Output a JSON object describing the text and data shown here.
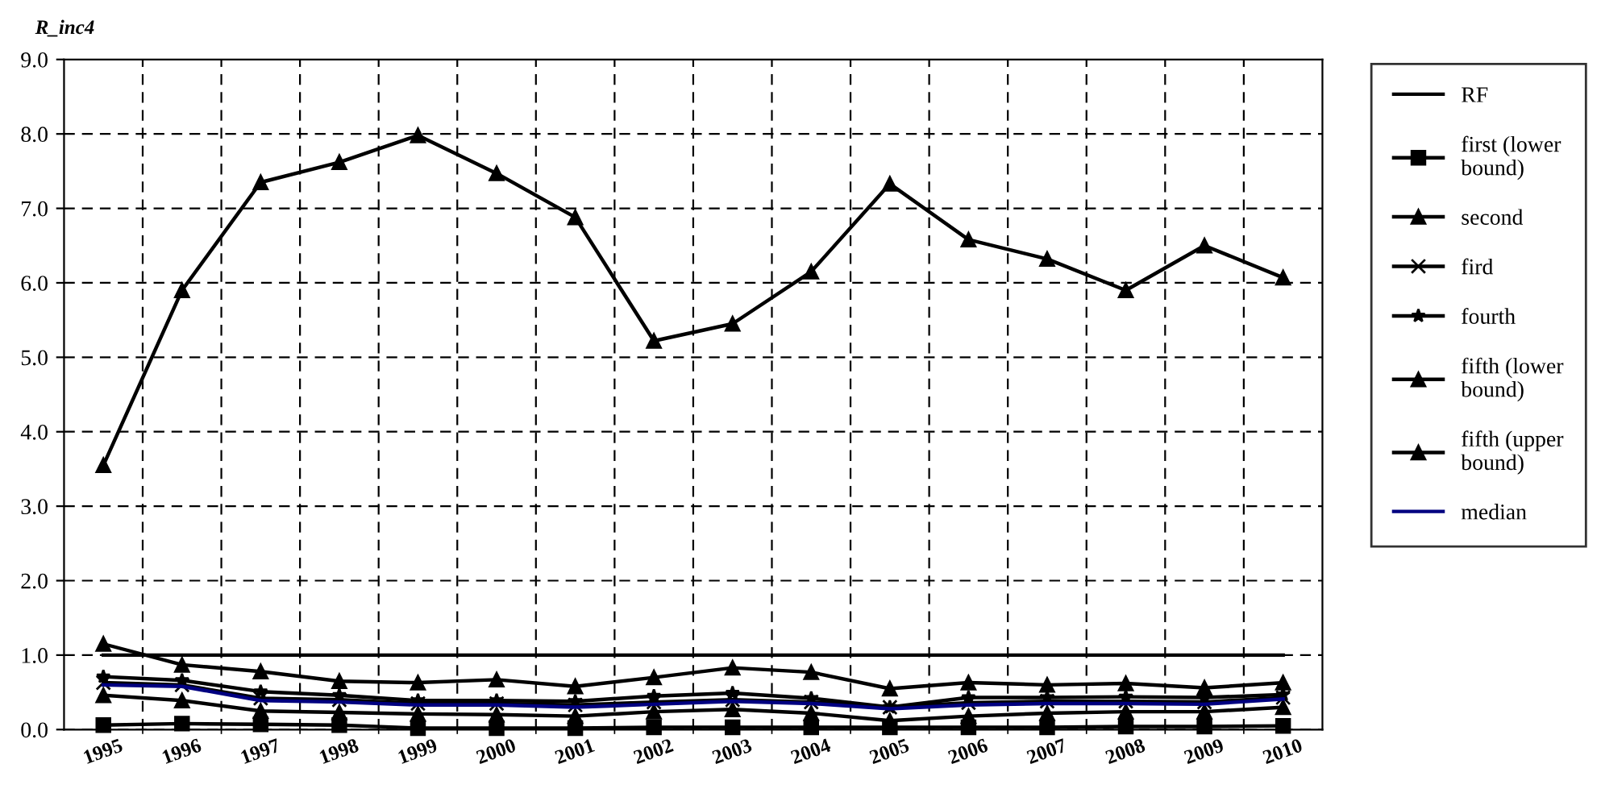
{
  "chart_data": {
    "type": "line",
    "title": "R_inc4",
    "categories": [
      "1995",
      "1996",
      "1997",
      "1998",
      "1999",
      "2000",
      "2001",
      "2002",
      "2003",
      "2004",
      "2005",
      "2006",
      "2007",
      "2008",
      "2009",
      "2010"
    ],
    "series": [
      {
        "name": "RF",
        "color": "#000000",
        "marker": "none",
        "values": [
          1.0,
          1.0,
          1.0,
          1.0,
          1.0,
          1.0,
          1.0,
          1.0,
          1.0,
          1.0,
          1.0,
          1.0,
          1.0,
          1.0,
          1.0,
          1.0
        ]
      },
      {
        "name": "first (lower bound)",
        "color": "#000000",
        "marker": "square",
        "values": [
          0.06,
          0.08,
          0.07,
          0.06,
          0.02,
          0.02,
          0.02,
          0.03,
          0.03,
          0.03,
          0.03,
          0.03,
          0.03,
          0.04,
          0.04,
          0.05
        ]
      },
      {
        "name": "second",
        "color": "#000000",
        "marker": "triangle",
        "values": [
          0.46,
          0.39,
          0.25,
          0.23,
          0.21,
          0.2,
          0.18,
          0.24,
          0.27,
          0.22,
          0.12,
          0.18,
          0.22,
          0.24,
          0.24,
          0.3
        ]
      },
      {
        "name": "fird",
        "color": "#000000",
        "marker": "cross",
        "values": [
          0.63,
          0.6,
          0.42,
          0.4,
          0.35,
          0.35,
          0.33,
          0.37,
          0.4,
          0.37,
          0.3,
          0.36,
          0.38,
          0.38,
          0.37,
          0.43
        ]
      },
      {
        "name": "fourth",
        "color": "#000000",
        "marker": "star",
        "values": [
          0.71,
          0.66,
          0.51,
          0.46,
          0.39,
          0.39,
          0.38,
          0.45,
          0.49,
          0.42,
          0.3,
          0.43,
          0.43,
          0.44,
          0.43,
          0.47
        ]
      },
      {
        "name": "fifth (lower bound)",
        "color": "#000000",
        "marker": "triangle",
        "values": [
          1.15,
          0.87,
          0.78,
          0.65,
          0.63,
          0.67,
          0.58,
          0.7,
          0.83,
          0.77,
          0.55,
          0.63,
          0.6,
          0.62,
          0.56,
          0.63
        ]
      },
      {
        "name": "fifth (upper bound)",
        "color": "#000000",
        "marker": "triangle",
        "values": [
          3.55,
          5.9,
          7.35,
          7.62,
          7.98,
          7.47,
          6.88,
          5.22,
          5.45,
          6.15,
          7.33,
          6.58,
          6.32,
          5.9,
          6.5,
          6.07
        ]
      },
      {
        "name": "median",
        "color": "#000080",
        "marker": "none",
        "values": [
          0.6,
          0.58,
          0.39,
          0.37,
          0.33,
          0.33,
          0.3,
          0.34,
          0.38,
          0.35,
          0.28,
          0.33,
          0.35,
          0.35,
          0.34,
          0.41
        ]
      }
    ],
    "ylim": [
      0,
      9
    ],
    "yticks": [
      {
        "value": 0,
        "label": "0.0"
      },
      {
        "value": 1,
        "label": "1.0"
      },
      {
        "value": 2,
        "label": "2.0"
      },
      {
        "value": 3,
        "label": "3.0"
      },
      {
        "value": 4,
        "label": "4.0"
      },
      {
        "value": 5,
        "label": "5.0"
      },
      {
        "value": 6,
        "label": "6.0"
      },
      {
        "value": 7,
        "label": "7.0"
      },
      {
        "value": 8,
        "label": "8.0"
      },
      {
        "value": 9,
        "label": "9.0"
      }
    ],
    "grid": true,
    "legend": "right",
    "line_style": "solid"
  }
}
